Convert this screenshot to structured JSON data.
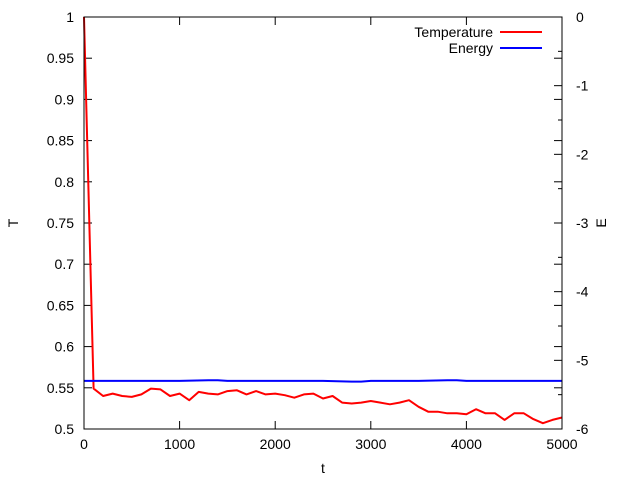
{
  "chart_data": {
    "type": "line",
    "xlabel": "t",
    "ylabel_left": "T",
    "ylabel_right": "E",
    "xlim": [
      0,
      5000
    ],
    "ylim_left": [
      0.5,
      1.0
    ],
    "ylim_right": [
      -6,
      0
    ],
    "x_ticks": [
      0,
      1000,
      2000,
      3000,
      4000,
      5000
    ],
    "x_tick_labels": [
      "0",
      "1000",
      "2000",
      "3000",
      "4000",
      "5000"
    ],
    "y_left_ticks": [
      0.5,
      0.55,
      0.6,
      0.65,
      0.7,
      0.75,
      0.8,
      0.85,
      0.9,
      0.95,
      1.0
    ],
    "y_left_tick_labels": [
      "0.5",
      "0.55",
      "0.6",
      "0.65",
      "0.7",
      "0.75",
      "0.8",
      "0.85",
      "0.9",
      "0.95",
      "1"
    ],
    "y_right_ticks": [
      -6,
      -5,
      -4,
      -3,
      -2,
      -1,
      0
    ],
    "y_right_tick_labels": [
      "-6",
      "-5",
      "-4",
      "-3",
      "-2",
      "-1",
      "0"
    ],
    "grid": false,
    "legend_position": "top-right",
    "series": [
      {
        "name": "Temperature",
        "axis": "left",
        "color": "#ff0000",
        "x": [
          0,
          100,
          200,
          300,
          400,
          500,
          600,
          700,
          800,
          900,
          1000,
          1100,
          1200,
          1300,
          1400,
          1500,
          1600,
          1700,
          1800,
          1900,
          2000,
          2100,
          2200,
          2300,
          2400,
          2500,
          2600,
          2700,
          2800,
          2900,
          3000,
          3100,
          3200,
          3300,
          3400,
          3500,
          3600,
          3700,
          3800,
          3900,
          4000,
          4100,
          4200,
          4300,
          4400,
          4500,
          4600,
          4700,
          4800,
          4900,
          5000
        ],
        "y": [
          1.0,
          0.549,
          0.54,
          0.543,
          0.54,
          0.539,
          0.542,
          0.549,
          0.548,
          0.54,
          0.543,
          0.535,
          0.545,
          0.543,
          0.542,
          0.546,
          0.547,
          0.542,
          0.546,
          0.542,
          0.543,
          0.541,
          0.538,
          0.542,
          0.543,
          0.537,
          0.54,
          0.532,
          0.531,
          0.532,
          0.534,
          0.532,
          0.53,
          0.532,
          0.535,
          0.527,
          0.521,
          0.521,
          0.519,
          0.519,
          0.518,
          0.524,
          0.519,
          0.519,
          0.511,
          0.519,
          0.519,
          0.512,
          0.507,
          0.511,
          0.514
        ]
      },
      {
        "name": "Energy",
        "axis": "right",
        "color": "#0000ff",
        "x": [
          0,
          100,
          500,
          1000,
          1300,
          1400,
          1500,
          2000,
          2500,
          2800,
          2900,
          3000,
          3500,
          3800,
          3900,
          4000,
          4500,
          5000
        ],
        "y": [
          -5.3,
          -5.3,
          -5.3,
          -5.3,
          -5.29,
          -5.29,
          -5.3,
          -5.3,
          -5.3,
          -5.31,
          -5.31,
          -5.3,
          -5.3,
          -5.29,
          -5.29,
          -5.3,
          -5.3,
          -5.3
        ]
      }
    ]
  }
}
